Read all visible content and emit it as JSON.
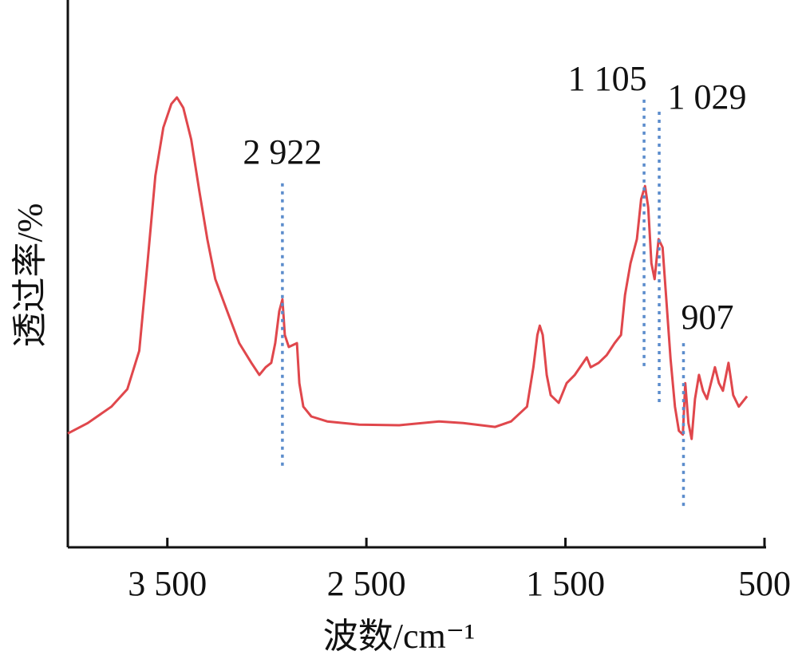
{
  "chart_data": {
    "type": "line",
    "xlabel": "波数/cm⁻¹",
    "ylabel": "透过率/%",
    "x": [
      4000,
      3900,
      3781,
      3701,
      3641,
      3600,
      3560,
      3520,
      3480,
      3452,
      3420,
      3380,
      3339,
      3299,
      3259,
      3199,
      3139,
      3078,
      3038,
      3006,
      2978,
      2958,
      2938,
      2922,
      2910,
      2890,
      2849,
      2837,
      2817,
      2777,
      2697,
      2536,
      2335,
      2135,
      2014,
      1853,
      1773,
      1693,
      1661,
      1641,
      1629,
      1614,
      1594,
      1574,
      1534,
      1494,
      1453,
      1393,
      1373,
      1333,
      1293,
      1253,
      1221,
      1201,
      1173,
      1141,
      1120,
      1100,
      1084,
      1068,
      1052,
      1032,
      1012,
      992,
      972,
      950,
      930,
      910,
      898,
      882,
      866,
      849,
      829,
      809,
      789,
      749,
      729,
      709,
      681,
      657,
      629,
      588
    ],
    "series": [
      {
        "color": "#e0474c",
        "values": [
          20.8,
          22.7,
          25.7,
          28.9,
          35.9,
          51.9,
          67.9,
          76.7,
          81.0,
          82.2,
          80.3,
          74.5,
          65.0,
          56.3,
          49.0,
          43.1,
          37.3,
          33.7,
          31.5,
          32.9,
          33.7,
          37.3,
          43.1,
          45.3,
          38.8,
          36.6,
          37.3,
          30.0,
          25.7,
          23.9,
          23.0,
          22.4,
          22.3,
          23.0,
          22.7,
          22.0,
          23.0,
          25.7,
          32.9,
          38.8,
          40.5,
          38.8,
          31.5,
          27.8,
          26.4,
          30.0,
          31.5,
          34.7,
          32.9,
          33.7,
          35.1,
          37.3,
          38.8,
          46.1,
          51.9,
          56.3,
          63.6,
          66.0,
          62.1,
          51.9,
          49.0,
          56.3,
          54.8,
          44.6,
          34.4,
          25.7,
          21.3,
          20.6,
          30.0,
          22.7,
          19.8,
          27.1,
          31.5,
          28.6,
          27.1,
          32.9,
          30.0,
          28.6,
          33.7,
          27.8,
          25.7,
          27.6
        ]
      }
    ],
    "xlim": [
      4000,
      500
    ],
    "ylim": [
      0,
      100
    ],
    "xticks": [
      {
        "value": 3500,
        "label": "3 500"
      },
      {
        "value": 2500,
        "label": "2 500"
      },
      {
        "value": 1500,
        "label": "1 500"
      },
      500
    ],
    "annotations": [
      {
        "label": "2 922",
        "x": 2922,
        "y": [
          66.5,
          14.7
        ],
        "color": "#5b8ccc"
      },
      {
        "label": "1 105",
        "x": 1105,
        "y": [
          81.8,
          32.9
        ],
        "color": "#5b8ccc"
      },
      {
        "label": "1 029",
        "x": 1029,
        "y": [
          79.6,
          26.4
        ],
        "color": "#5b8ccc"
      },
      {
        "label": "907",
        "x": 907,
        "y": [
          37.3,
          7.4
        ],
        "color": "#5b8ccc"
      }
    ]
  }
}
